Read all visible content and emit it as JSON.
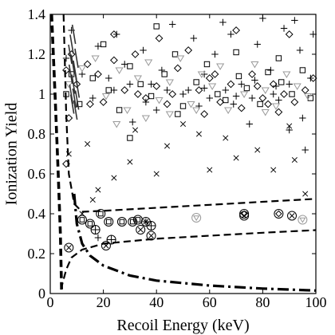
{
  "chart_data": {
    "type": "scatter",
    "xlabel": "Recoil Energy (keV)",
    "ylabel": "Ionization Yield",
    "xlim": [
      0,
      100
    ],
    "ylim": [
      0,
      1.4
    ],
    "x_ticks": [
      "0",
      "20",
      "40",
      "60",
      "80",
      "100"
    ],
    "y_ticks": [
      "0",
      "0.2",
      "0.4",
      "0.6",
      "0.8",
      "1",
      "1.2",
      "1.4"
    ],
    "grid": false,
    "series": [
      {
        "marker": "plus",
        "color": "#000000",
        "points": [
          [
            6,
            1.18
          ],
          [
            8,
            1.32
          ],
          [
            12,
            1.1
          ],
          [
            16,
            0.98
          ],
          [
            18,
            1.24
          ],
          [
            22,
            1.08
          ],
          [
            25,
            1.3
          ],
          [
            28,
            1.15
          ],
          [
            31,
            0.86
          ],
          [
            35,
            1.22
          ],
          [
            38,
            1.05
          ],
          [
            42,
            1.12
          ],
          [
            46,
            1.35
          ],
          [
            50,
            1.0
          ],
          [
            54,
            1.28
          ],
          [
            58,
            1.1
          ],
          [
            62,
            1.2
          ],
          [
            65,
            1.36
          ],
          [
            68,
            1.3
          ],
          [
            72,
            1.05
          ],
          [
            75,
            0.85
          ],
          [
            78,
            1.25
          ],
          [
            80,
            1.38
          ],
          [
            83,
            1.12
          ],
          [
            86,
            0.97
          ],
          [
            88,
            1.33
          ],
          [
            90,
            0.82
          ],
          [
            92,
            1.37
          ],
          [
            94,
            1.22
          ],
          [
            96,
            0.72
          ],
          [
            98,
            1.08
          ],
          [
            99,
            1.3
          ],
          [
            36,
            0.96
          ],
          [
            52,
            1.02
          ],
          [
            70,
            0.99
          ],
          [
            60,
            0.98
          ],
          [
            44,
            1.02
          ],
          [
            84,
            1.0
          ],
          [
            24,
            1.02
          ],
          [
            56,
            0.94
          ],
          [
            90,
            1.05
          ],
          [
            66,
            1.02
          ],
          [
            76,
            0.98
          ],
          [
            40,
            0.92
          ],
          [
            95,
            0.88
          ],
          [
            30,
            1.05
          ],
          [
            36,
            0.36
          ],
          [
            18,
            0.28
          ],
          [
            85,
            1.04
          ],
          [
            69,
            0.95
          ],
          [
            77,
            1.07
          ],
          [
            58,
            1.03
          ]
        ]
      },
      {
        "marker": "diamond",
        "color": "#000000",
        "points": [
          [
            6,
            1.12
          ],
          [
            7,
            0.88
          ],
          [
            8,
            1.2
          ],
          [
            10,
            1.05
          ],
          [
            14,
            1.15
          ],
          [
            18,
            1.1
          ],
          [
            20,
            0.96
          ],
          [
            24,
            1.17
          ],
          [
            28,
            1.02
          ],
          [
            32,
            1.2
          ],
          [
            36,
            0.98
          ],
          [
            40,
            1.04
          ],
          [
            44,
            0.95
          ],
          [
            48,
            1.13
          ],
          [
            52,
            1.22
          ],
          [
            56,
            1.02
          ],
          [
            60,
            1.08
          ],
          [
            64,
            0.96
          ],
          [
            68,
            1.05
          ],
          [
            72,
            0.93
          ],
          [
            76,
            1.1
          ],
          [
            80,
            0.98
          ],
          [
            84,
            1.05
          ],
          [
            88,
            1.0
          ],
          [
            92,
            0.96
          ],
          [
            96,
            1.02
          ],
          [
            99,
            1.08
          ],
          [
            24,
            1.3
          ],
          [
            41,
            1.28
          ],
          [
            6,
            0.65
          ],
          [
            70,
            1.32
          ],
          [
            82,
            0.95
          ],
          [
            58,
            0.9
          ],
          [
            46,
            1.0
          ],
          [
            90,
            1.3
          ],
          [
            15,
            0.95
          ],
          [
            33,
            1.0
          ],
          [
            62,
            1.1
          ],
          [
            78,
            1.04
          ],
          [
            86,
            0.91
          ]
        ]
      },
      {
        "marker": "square",
        "color": "#000000",
        "points": [
          [
            6,
            1.0
          ],
          [
            8,
            1.1
          ],
          [
            11,
            0.95
          ],
          [
            16,
            1.08
          ],
          [
            22,
            1.02
          ],
          [
            26,
            0.92
          ],
          [
            30,
            1.14
          ],
          [
            34,
            1.05
          ],
          [
            38,
            0.99
          ],
          [
            43,
            1.1
          ],
          [
            47,
            1.2
          ],
          [
            50,
            0.94
          ],
          [
            55,
            1.06
          ],
          [
            59,
            1.15
          ],
          [
            63,
            1.0
          ],
          [
            66,
            0.97
          ],
          [
            71,
            1.09
          ],
          [
            74,
            1.03
          ],
          [
            79,
            0.95
          ],
          [
            82,
            1.11
          ],
          [
            87,
            1.06
          ],
          [
            91,
            1.0
          ],
          [
            95,
            1.12
          ],
          [
            98,
            0.98
          ],
          [
            40,
            1.34
          ],
          [
            30,
            0.78
          ],
          [
            70,
            1.21
          ],
          [
            48,
            0.9
          ],
          [
            86,
            1.18
          ],
          [
            20,
            1.25
          ]
        ]
      },
      {
        "marker": "triangle-down",
        "color": "#999999",
        "points": [
          [
            7,
            1.05
          ],
          [
            12,
            1.13
          ],
          [
            17,
            1.18
          ],
          [
            21,
            0.99
          ],
          [
            26,
            1.12
          ],
          [
            29,
            0.92
          ],
          [
            33,
            1.08
          ],
          [
            37,
            1.16
          ],
          [
            41,
            0.97
          ],
          [
            45,
            1.06
          ],
          [
            49,
            1.18
          ],
          [
            53,
            0.95
          ],
          [
            57,
            1.1
          ],
          [
            61,
            1.04
          ],
          [
            64,
            1.14
          ],
          [
            67,
            0.92
          ],
          [
            73,
            1.0
          ],
          [
            77,
            1.15
          ],
          [
            81,
            1.02
          ],
          [
            85,
            0.94
          ],
          [
            89,
            1.1
          ],
          [
            93,
            1.04
          ],
          [
            97,
            0.99
          ],
          [
            45,
            0.9
          ],
          [
            55,
            0.92
          ],
          [
            36,
            0.88
          ],
          [
            81,
            0.91
          ],
          [
            25,
            0.85
          ]
        ]
      },
      {
        "marker": "x",
        "color": "#000000",
        "points": [
          [
            14,
            0.75
          ],
          [
            30,
            0.66
          ],
          [
            44,
            0.74
          ],
          [
            56,
            0.8
          ],
          [
            70,
            0.68
          ],
          [
            90,
            0.84
          ],
          [
            24,
            0.58
          ],
          [
            40,
            0.6
          ],
          [
            60,
            0.62
          ],
          [
            78,
            0.72
          ],
          [
            96,
            0.5
          ],
          [
            16,
            0.47
          ],
          [
            18,
            0.52
          ],
          [
            12,
            0.4
          ],
          [
            7,
            0.7
          ],
          [
            32,
            0.82
          ],
          [
            50,
            0.85
          ],
          [
            84,
            0.62
          ],
          [
            66,
            0.78
          ],
          [
            92,
            0.67
          ]
        ]
      },
      {
        "marker": "spike",
        "color": "#333333",
        "points": [
          [
            7.5,
            1.2
          ],
          [
            7.7,
            1.1
          ],
          [
            7.9,
            1.0
          ],
          [
            8.1,
            1.25
          ],
          [
            8.3,
            0.95
          ],
          [
            8.5,
            1.15
          ],
          [
            8.7,
            1.05
          ],
          [
            8.9,
            1.3
          ],
          [
            9.1,
            0.98
          ],
          [
            9.3,
            1.12
          ],
          [
            9.5,
            0.92
          ],
          [
            9.7,
            1.08
          ],
          [
            9.9,
            1.18
          ],
          [
            10.1,
            0.97
          ],
          [
            10.3,
            1.03
          ]
        ]
      },
      {
        "marker": "circle-x",
        "color": "#000000",
        "points": [
          [
            7,
            0.23
          ],
          [
            21,
            0.24
          ],
          [
            34,
            0.32
          ],
          [
            36,
            0.36
          ],
          [
            38,
            0.29
          ],
          [
            73,
            0.39
          ],
          [
            91,
            0.39
          ]
        ]
      },
      {
        "marker": "circle-plus",
        "color": "#000000",
        "points": [
          [
            23,
            0.27
          ],
          [
            38,
            0.34
          ],
          [
            17,
            0.32
          ]
        ]
      },
      {
        "marker": "circle-square",
        "color": "#000000",
        "points": [
          [
            12,
            0.37
          ],
          [
            15,
            0.35
          ],
          [
            19,
            0.4
          ],
          [
            22,
            0.36
          ],
          [
            27,
            0.36
          ],
          [
            31,
            0.36
          ],
          [
            33,
            0.37
          ]
        ]
      },
      {
        "marker": "circle-diamond",
        "color": "#000000",
        "points": [
          [
            73,
            0.4
          ],
          [
            86,
            0.4
          ]
        ]
      },
      {
        "marker": "circle-triangle",
        "color": "#999999",
        "points": [
          [
            55,
            0.38
          ],
          [
            95,
            0.37
          ]
        ]
      }
    ],
    "curves": [
      {
        "style": "dashed",
        "width": 2.2,
        "points": [
          [
            5,
            1.4
          ],
          [
            6,
            0.9
          ],
          [
            7,
            0.6
          ],
          [
            9,
            0.45
          ],
          [
            12,
            0.41
          ],
          [
            20,
            0.415
          ],
          [
            40,
            0.43
          ],
          [
            60,
            0.445
          ],
          [
            80,
            0.46
          ],
          [
            100,
            0.475
          ]
        ]
      },
      {
        "style": "dashed",
        "width": 2.2,
        "points": [
          [
            4,
            0.02
          ],
          [
            6,
            0.12
          ],
          [
            8,
            0.18
          ],
          [
            12,
            0.22
          ],
          [
            20,
            0.25
          ],
          [
            40,
            0.275
          ],
          [
            60,
            0.29
          ],
          [
            80,
            0.305
          ],
          [
            100,
            0.318
          ]
        ]
      },
      {
        "style": "dashdot",
        "width": 3.2,
        "points": [
          [
            9,
            0.5
          ],
          [
            10,
            0.35
          ],
          [
            12,
            0.25
          ],
          [
            15,
            0.19
          ],
          [
            20,
            0.14
          ],
          [
            30,
            0.09
          ],
          [
            40,
            0.065
          ],
          [
            60,
            0.04
          ],
          [
            80,
            0.025
          ],
          [
            100,
            0.015
          ]
        ]
      },
      {
        "style": "dashed",
        "width": 3.6,
        "points": [
          [
            0.5,
            1.4
          ],
          [
            1.8,
            1.0
          ],
          [
            3,
            0.6
          ],
          [
            3.8,
            0.3
          ],
          [
            4.3,
            0.0
          ]
        ]
      }
    ]
  }
}
